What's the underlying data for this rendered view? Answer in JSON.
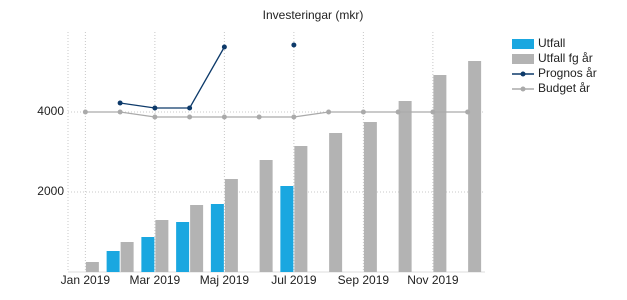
{
  "chart_data": {
    "type": "bar",
    "title": "Investeringar (mkr)",
    "categories": [
      "Jan 2019",
      null,
      "Mar 2019",
      null,
      "Maj 2019",
      null,
      "Jul 2019",
      null,
      "Sep 2019",
      null,
      "Nov 2019",
      null
    ],
    "series": [
      {
        "name": "Utfall",
        "type": "bar",
        "color": "#1aa7e0",
        "values": [
          null,
          525,
          875,
          1250,
          1700,
          null,
          2150,
          null,
          null,
          null,
          null,
          null
        ]
      },
      {
        "name": "Utfall fg år",
        "type": "bar",
        "color": "#b3b3b3",
        "values": [
          250,
          750,
          1300,
          1675,
          2325,
          2800,
          3150,
          3475,
          3750,
          4275,
          4925,
          5275
        ]
      },
      {
        "name": "Prognos år",
        "type": "line",
        "color": "#0d3a6a",
        "values": [
          null,
          4225,
          4100,
          4100,
          5625,
          null,
          5675,
          null,
          null,
          null,
          null,
          null
        ]
      },
      {
        "name": "Budget år",
        "type": "line",
        "color": "#aaaaaa",
        "values": [
          4000,
          4000,
          3875,
          3875,
          3875,
          3875,
          3875,
          4000,
          4000,
          4000,
          4000,
          4000
        ]
      }
    ],
    "ylim": [
      0,
      6000
    ],
    "yticks": [
      2000,
      4000
    ],
    "grid": true,
    "legend": "right"
  }
}
